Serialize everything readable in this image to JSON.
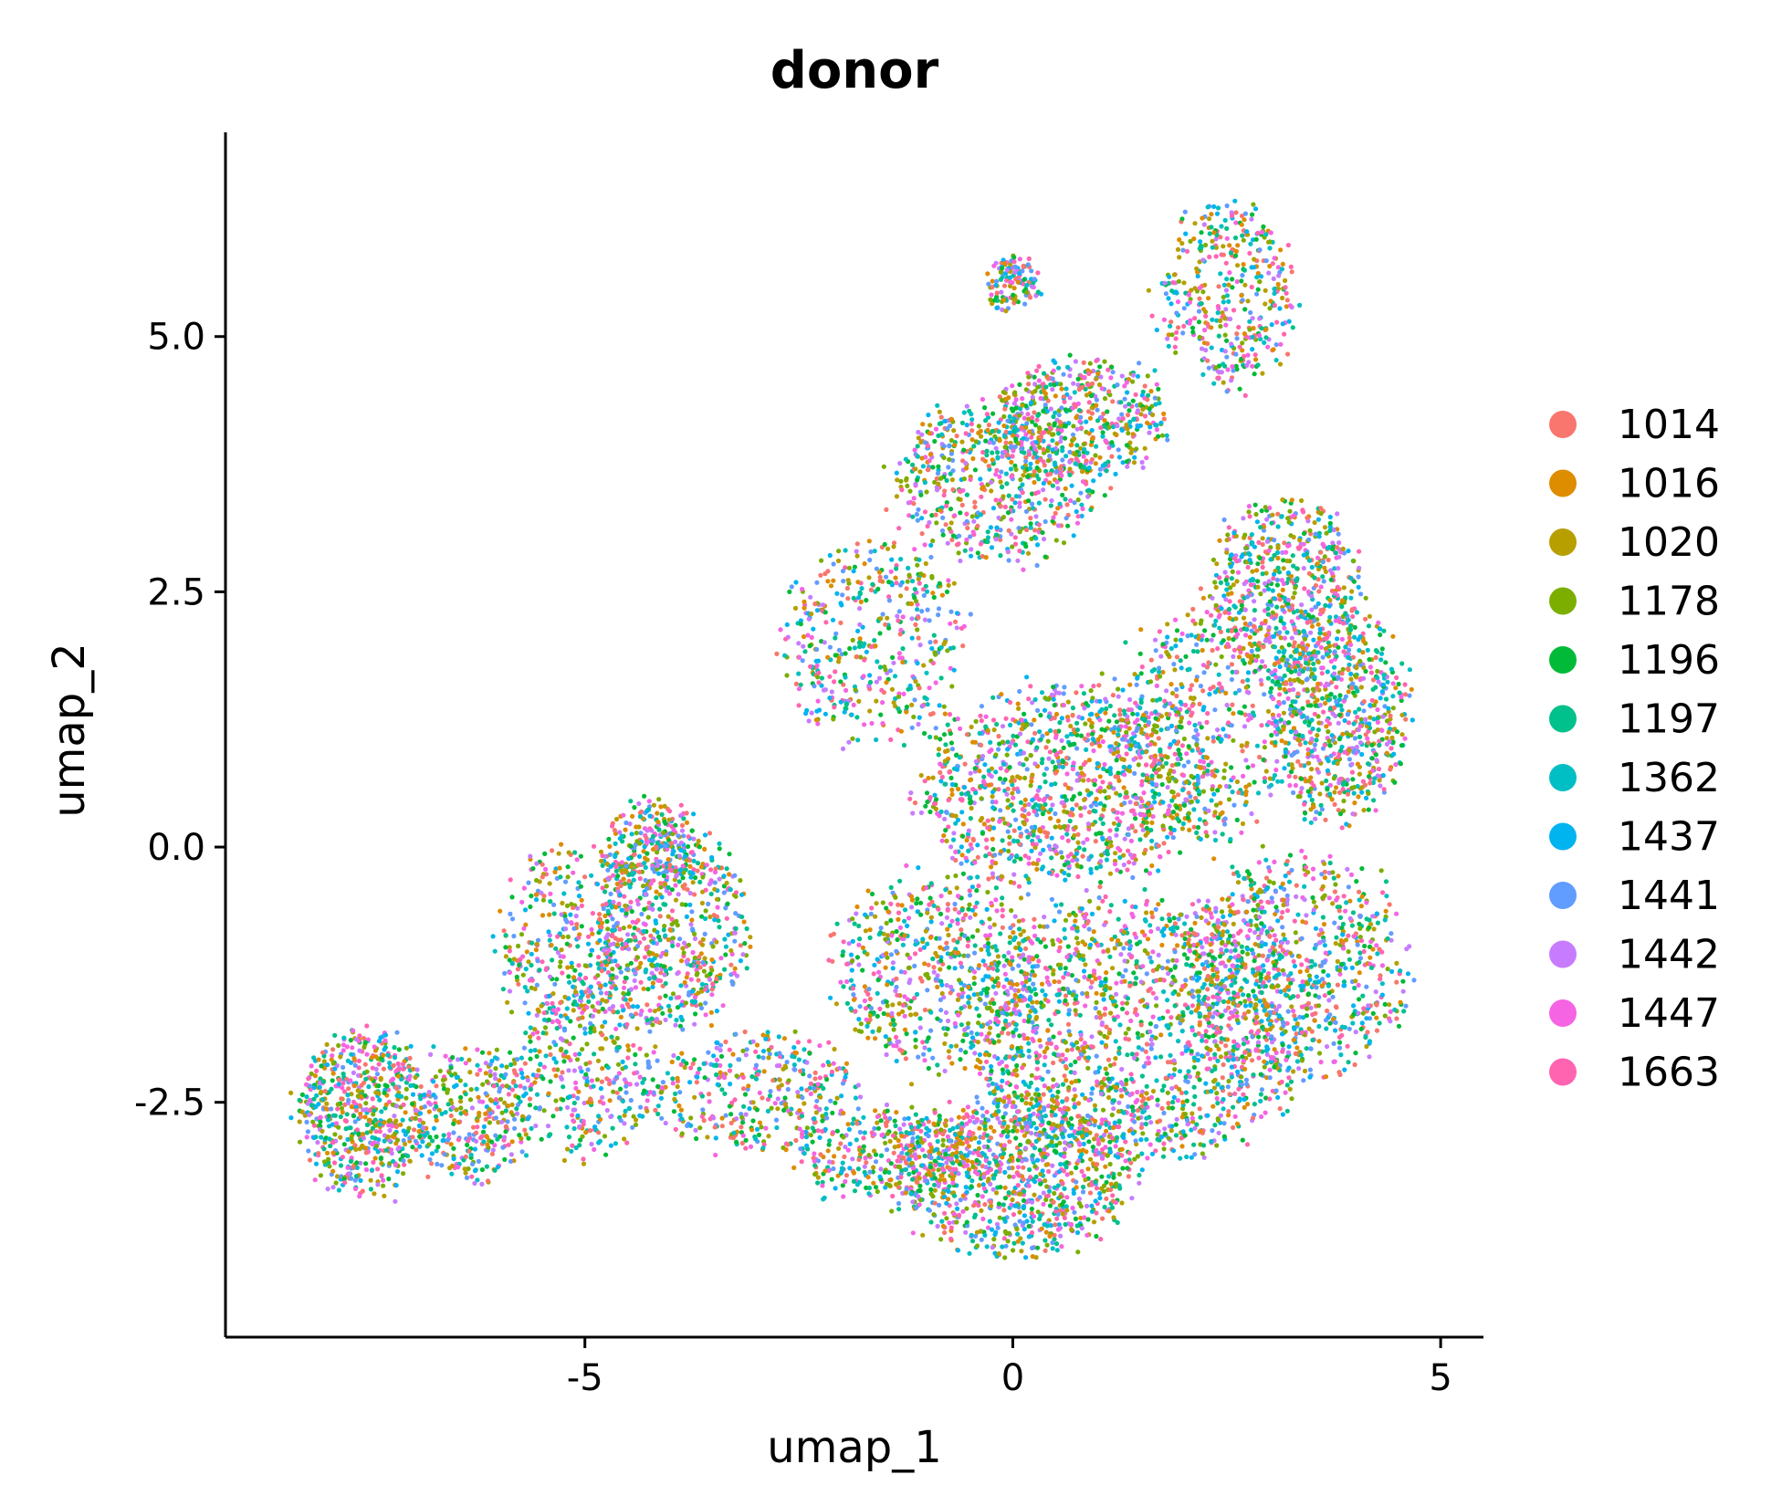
{
  "chart_data": {
    "type": "scatter",
    "title": "donor",
    "xlabel": "umap_1",
    "ylabel": "umap_2",
    "xlim": [
      -9.2,
      5.5
    ],
    "ylim": [
      -4.8,
      7.0
    ],
    "x_ticks": [
      -5,
      0,
      5
    ],
    "x_tick_labels": [
      "-5",
      "0",
      "5"
    ],
    "y_ticks": [
      -2.5,
      0.0,
      2.5,
      5.0
    ],
    "y_tick_labels": [
      "-2.5",
      "0.0",
      "2.5",
      "5.0"
    ],
    "grid": false,
    "legend_position": "right",
    "series": [
      {
        "name": "1014",
        "color": "#F8766D"
      },
      {
        "name": "1016",
        "color": "#DE8C00"
      },
      {
        "name": "1020",
        "color": "#B79F00"
      },
      {
        "name": "1178",
        "color": "#7CAE00"
      },
      {
        "name": "1196",
        "color": "#00BA38"
      },
      {
        "name": "1197",
        "color": "#00C08B"
      },
      {
        "name": "1362",
        "color": "#00BFC4"
      },
      {
        "name": "1437",
        "color": "#00B4F0"
      },
      {
        "name": "1441",
        "color": "#619CFF"
      },
      {
        "name": "1442",
        "color": "#C77CFF"
      },
      {
        "name": "1447",
        "color": "#F564E3"
      },
      {
        "name": "1663",
        "color": "#FF64B0"
      }
    ],
    "point_cloud_regions": [
      {
        "center": [
          -7.6,
          -2.6
        ],
        "radius": [
          0.75,
          0.8
        ],
        "weight": 0.05
      },
      {
        "center": [
          -6.3,
          -2.6
        ],
        "radius": [
          0.7,
          0.7
        ],
        "weight": 0.025
      },
      {
        "center": [
          -5.0,
          -2.2
        ],
        "radius": [
          0.9,
          0.8
        ],
        "weight": 0.03
      },
      {
        "center": [
          -5.2,
          -0.9
        ],
        "radius": [
          0.8,
          0.9
        ],
        "weight": 0.03
      },
      {
        "center": [
          -4.0,
          -0.8
        ],
        "radius": [
          0.9,
          1.0
        ],
        "weight": 0.05
      },
      {
        "center": [
          -4.2,
          0.0
        ],
        "radius": [
          0.6,
          0.45
        ],
        "weight": 0.02
      },
      {
        "center": [
          -3.0,
          -2.4
        ],
        "radius": [
          1.2,
          0.6
        ],
        "weight": 0.03
      },
      {
        "center": [
          -1.5,
          -3.0
        ],
        "radius": [
          1.1,
          0.45
        ],
        "weight": 0.03
      },
      {
        "center": [
          0.0,
          -3.2
        ],
        "radius": [
          1.4,
          0.8
        ],
        "weight": 0.08
      },
      {
        "center": [
          1.4,
          -1.8
        ],
        "radius": [
          2.0,
          1.3
        ],
        "weight": 0.13
      },
      {
        "center": [
          3.3,
          -1.2
        ],
        "radius": [
          1.3,
          1.1
        ],
        "weight": 0.07
      },
      {
        "center": [
          -0.9,
          -1.2
        ],
        "radius": [
          1.2,
          1.0
        ],
        "weight": 0.05
      },
      {
        "center": [
          0.6,
          0.6
        ],
        "radius": [
          1.7,
          1.0
        ],
        "weight": 0.09
      },
      {
        "center": [
          3.8,
          1.3
        ],
        "radius": [
          0.8,
          1.1
        ],
        "weight": 0.06
      },
      {
        "center": [
          3.2,
          2.5
        ],
        "radius": [
          0.9,
          0.9
        ],
        "weight": 0.05
      },
      {
        "center": [
          2.2,
          1.2
        ],
        "radius": [
          1.0,
          1.2
        ],
        "weight": 0.04
      },
      {
        "center": [
          -1.6,
          2.0
        ],
        "radius": [
          1.1,
          1.0
        ],
        "weight": 0.04
      },
      {
        "center": [
          -0.2,
          3.6
        ],
        "radius": [
          1.2,
          0.8
        ],
        "weight": 0.05
      },
      {
        "center": [
          0.8,
          4.2
        ],
        "radius": [
          1.0,
          0.6
        ],
        "weight": 0.04
      },
      {
        "center": [
          2.5,
          5.4
        ],
        "radius": [
          0.8,
          0.9
        ],
        "weight": 0.035
      },
      {
        "center": [
          0.0,
          5.5
        ],
        "radius": [
          0.3,
          0.25
        ],
        "weight": 0.01
      }
    ]
  }
}
